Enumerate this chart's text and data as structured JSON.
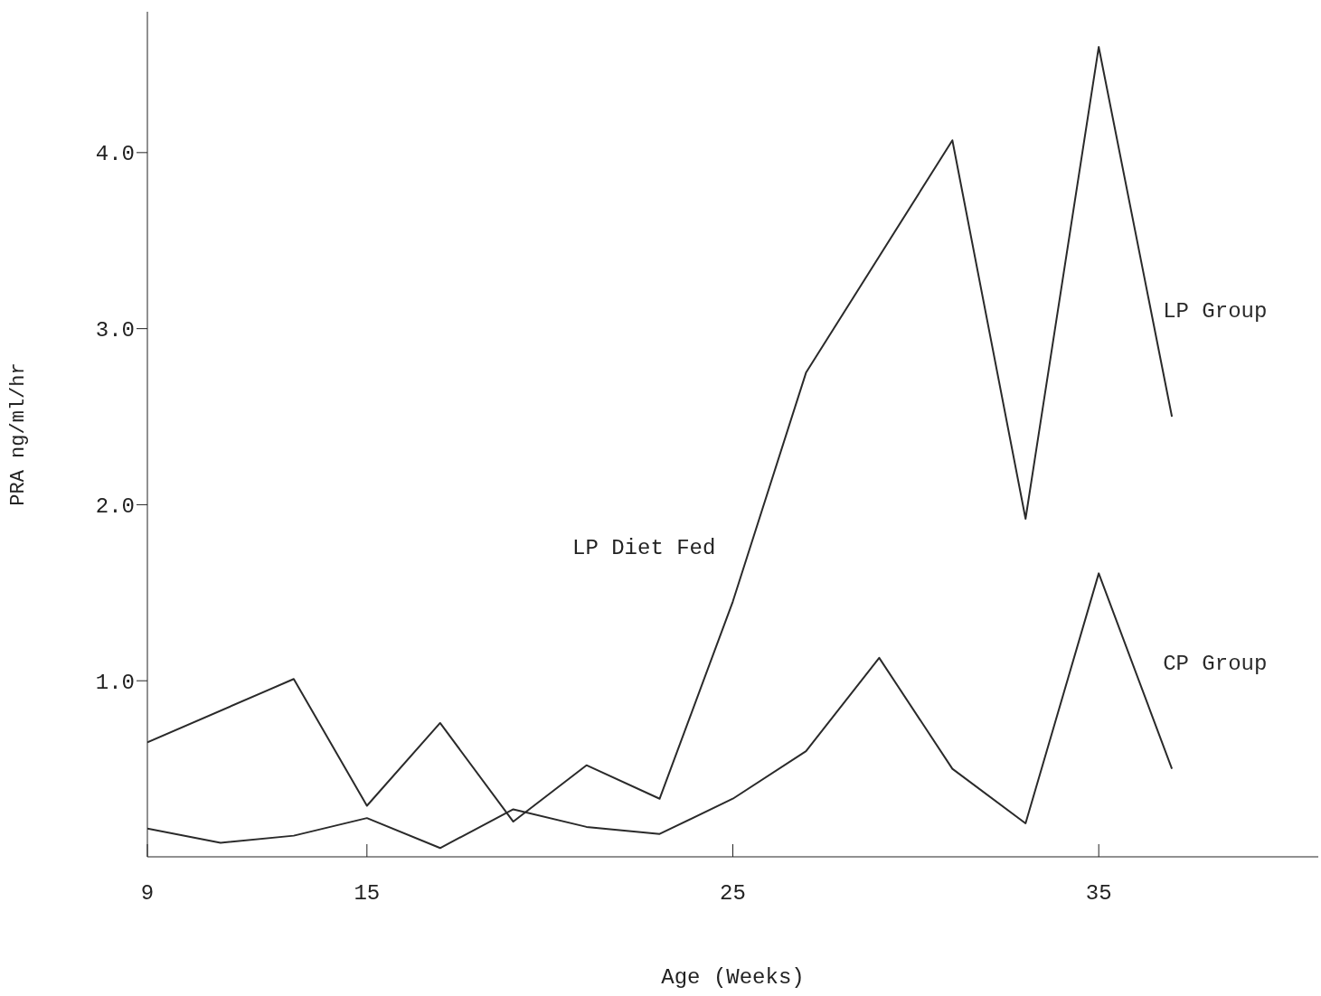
{
  "chart_data": {
    "type": "line",
    "xlabel": "Age (Weeks)",
    "ylabel": "PRA ng/ml/hr",
    "x": [
      9,
      11,
      13,
      15,
      17,
      19,
      21,
      23,
      25,
      27,
      29,
      31,
      33,
      35,
      37
    ],
    "xlim": [
      9,
      41
    ],
    "xticks": [
      9,
      15,
      25,
      35
    ],
    "ylim": [
      0,
      4.8
    ],
    "yticks": [
      {
        "value": 1,
        "label": "1.0"
      },
      {
        "value": 2,
        "label": "2.0"
      },
      {
        "value": 3,
        "label": "3.0"
      },
      {
        "value": 4,
        "label": "4.0"
      }
    ],
    "grid": false,
    "legend": false,
    "marker": "none",
    "line_style": "solid",
    "annotations": [
      "LP Diet Fed"
    ],
    "series": [
      {
        "name": "LP Group",
        "color": "#2a2a2a",
        "x": [
          9,
          13,
          15,
          17,
          19,
          21,
          23,
          25,
          27,
          31,
          33,
          35,
          37
        ],
        "values": [
          0.65,
          1.01,
          0.29,
          0.76,
          0.2,
          0.52,
          0.33,
          1.45,
          2.75,
          4.07,
          1.92,
          4.6,
          2.5
        ]
      },
      {
        "name": "CP Group",
        "color": "#2a2a2a",
        "values": [
          0.16,
          0.08,
          0.12,
          0.22,
          0.05,
          0.27,
          0.17,
          0.13,
          0.33,
          0.6,
          1.13,
          0.5,
          0.19,
          1.61,
          0.5
        ]
      }
    ]
  }
}
